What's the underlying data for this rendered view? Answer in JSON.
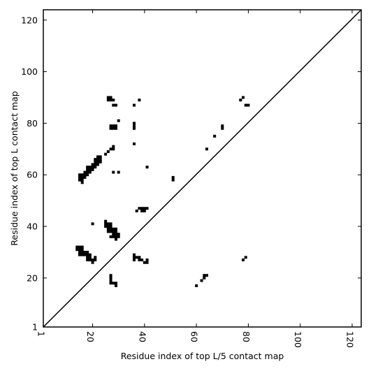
{
  "chart_data": {
    "type": "scatter",
    "title": "",
    "xlabel": "Residue index of top L/5 contact map",
    "ylabel": "Residue index of top L contact map",
    "xlim": [
      1,
      123.5
    ],
    "ylim": [
      1,
      124
    ],
    "xticks": [
      1,
      20,
      40,
      60,
      80,
      100,
      120
    ],
    "yticks": [
      1,
      20,
      40,
      60,
      80,
      100,
      120
    ],
    "xtick_rotation": -90,
    "grid": false,
    "legend": "none",
    "marker_color": "#000000",
    "diagonal_line": true,
    "series": [
      {
        "values_note": "",
        "points": [
          [
            26,
            90
          ],
          [
            27,
            90
          ],
          [
            26,
            89
          ],
          [
            27,
            89
          ],
          [
            28,
            89
          ],
          [
            28,
            87
          ],
          [
            29,
            87
          ],
          [
            38,
            89
          ],
          [
            36,
            87
          ],
          [
            30,
            81
          ],
          [
            27,
            79
          ],
          [
            28,
            79
          ],
          [
            29,
            79
          ],
          [
            27,
            78
          ],
          [
            28,
            78
          ],
          [
            29,
            78
          ],
          [
            36,
            80
          ],
          [
            36,
            79
          ],
          [
            36,
            78
          ],
          [
            36,
            72
          ],
          [
            28,
            71
          ],
          [
            27,
            70
          ],
          [
            28,
            70
          ],
          [
            25,
            68
          ],
          [
            26,
            69
          ],
          [
            22,
            67
          ],
          [
            23,
            67
          ],
          [
            21,
            66
          ],
          [
            22,
            66
          ],
          [
            23,
            66
          ],
          [
            21,
            65
          ],
          [
            22,
            65
          ],
          [
            23,
            65
          ],
          [
            20,
            64
          ],
          [
            21,
            64
          ],
          [
            22,
            64
          ],
          [
            19,
            63
          ],
          [
            20,
            63
          ],
          [
            21,
            63
          ],
          [
            18,
            63
          ],
          [
            18,
            62
          ],
          [
            19,
            62
          ],
          [
            20,
            62
          ],
          [
            17,
            61
          ],
          [
            18,
            61
          ],
          [
            19,
            61
          ],
          [
            17,
            60
          ],
          [
            18,
            60
          ],
          [
            15,
            60
          ],
          [
            16,
            60
          ],
          [
            15,
            59
          ],
          [
            16,
            59
          ],
          [
            17,
            59
          ],
          [
            15,
            58
          ],
          [
            16,
            58
          ],
          [
            16,
            57
          ],
          [
            28,
            61
          ],
          [
            30,
            61
          ],
          [
            41,
            63
          ],
          [
            51,
            59
          ],
          [
            51,
            58
          ],
          [
            38,
            47
          ],
          [
            39,
            47
          ],
          [
            40,
            47
          ],
          [
            41,
            47
          ],
          [
            37,
            46
          ],
          [
            39,
            46
          ],
          [
            40,
            46
          ],
          [
            25,
            42
          ],
          [
            25,
            41
          ],
          [
            26,
            41
          ],
          [
            27,
            41
          ],
          [
            25,
            40
          ],
          [
            26,
            40
          ],
          [
            27,
            40
          ],
          [
            26,
            39
          ],
          [
            27,
            39
          ],
          [
            28,
            39
          ],
          [
            29,
            39
          ],
          [
            26,
            38
          ],
          [
            27,
            38
          ],
          [
            28,
            38
          ],
          [
            29,
            38
          ],
          [
            28,
            37
          ],
          [
            29,
            37
          ],
          [
            30,
            37
          ],
          [
            27,
            36
          ],
          [
            28,
            36
          ],
          [
            29,
            36
          ],
          [
            30,
            36
          ],
          [
            29,
            35
          ],
          [
            20,
            41
          ],
          [
            14,
            32
          ],
          [
            15,
            32
          ],
          [
            16,
            32
          ],
          [
            14,
            31
          ],
          [
            15,
            31
          ],
          [
            16,
            31
          ],
          [
            15,
            30
          ],
          [
            16,
            30
          ],
          [
            17,
            30
          ],
          [
            18,
            30
          ],
          [
            15,
            29
          ],
          [
            16,
            29
          ],
          [
            17,
            29
          ],
          [
            18,
            29
          ],
          [
            19,
            29
          ],
          [
            18,
            28
          ],
          [
            19,
            28
          ],
          [
            21,
            28
          ],
          [
            18,
            27
          ],
          [
            19,
            27
          ],
          [
            20,
            27
          ],
          [
            21,
            27
          ],
          [
            20,
            26
          ],
          [
            36,
            29
          ],
          [
            36,
            28
          ],
          [
            37,
            28
          ],
          [
            38,
            28
          ],
          [
            36,
            27
          ],
          [
            38,
            27
          ],
          [
            39,
            27
          ],
          [
            40,
            26
          ],
          [
            41,
            26
          ],
          [
            41,
            27
          ],
          [
            27,
            21
          ],
          [
            27,
            20
          ],
          [
            27,
            19
          ],
          [
            27,
            18
          ],
          [
            28,
            18
          ],
          [
            29,
            18
          ],
          [
            29,
            17
          ],
          [
            60,
            17
          ],
          [
            62,
            19
          ],
          [
            63,
            20
          ],
          [
            63,
            21
          ],
          [
            64,
            21
          ],
          [
            64,
            70
          ],
          [
            67,
            75
          ],
          [
            70,
            79
          ],
          [
            70,
            78
          ],
          [
            77,
            89
          ],
          [
            78,
            90
          ],
          [
            79,
            87
          ],
          [
            80,
            87
          ],
          [
            78,
            27
          ],
          [
            79,
            28
          ]
        ]
      }
    ]
  }
}
